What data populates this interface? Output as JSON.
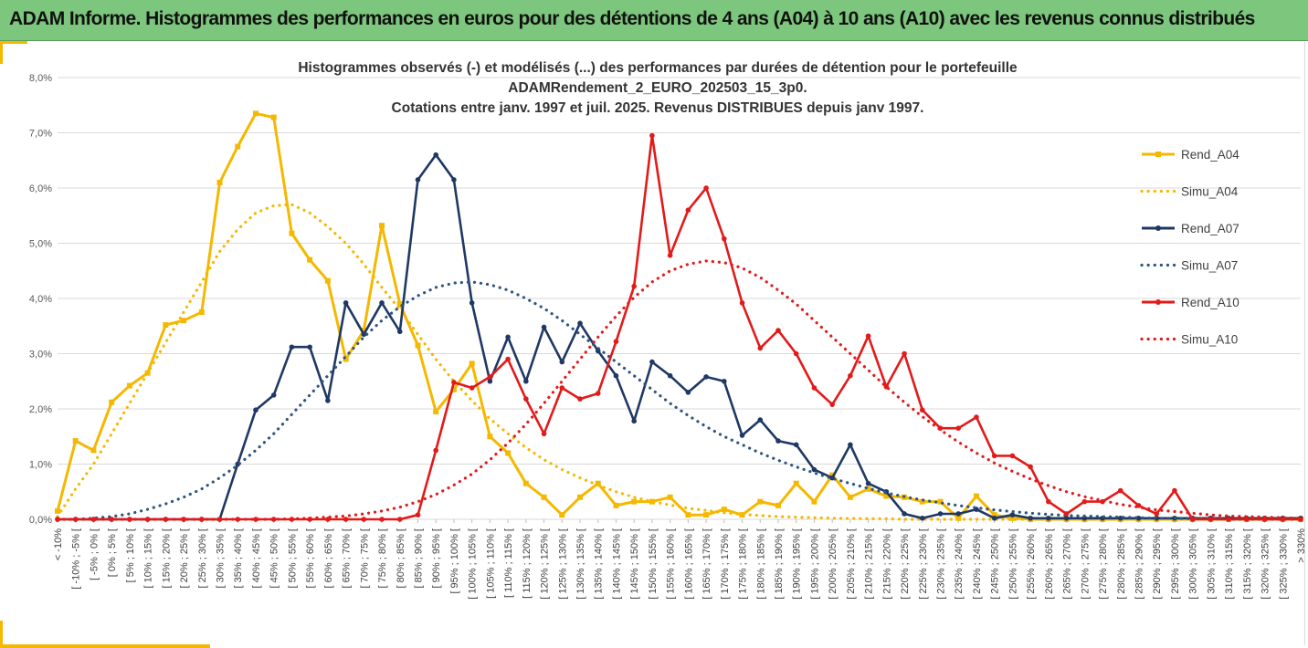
{
  "banner": {
    "title": "ADAM Informe. Histogrammes des performances en euros pour des détentions de 4 ans (A04) à 10 ans (A10) avec les revenus connus distribués"
  },
  "chart_data": {
    "type": "line",
    "title_lines": [
      "Histogrammes observés (-) et modélisés (...) des performances par durées de détention pour le portefeuille",
      "ADAMRendement_2_EURO_202503_15_3p0.",
      "Cotations entre janv. 1997 et juil. 2025. Revenus DISTRIBUES depuis janv 1997."
    ],
    "xlabel": "",
    "ylabel": "",
    "ylim": [
      0,
      8
    ],
    "y_ticks": [
      "0,0%",
      "1,0%",
      "2,0%",
      "3,0%",
      "4,0%",
      "5,0%",
      "6,0%",
      "7,0%",
      "8,0%"
    ],
    "grid": true,
    "legend_position": "right",
    "categories": [
      "< -10%",
      "[ -10% ; -5% [",
      "[ -5% ; 0% [",
      "[ 0% ; 5% [",
      "[ 5% ; 10% [",
      "[ 10% ; 15% [",
      "[ 15% ; 20% [",
      "[ 20% ; 25% [",
      "[ 25% ; 30% [",
      "[ 30% ; 35% [",
      "[ 35% ; 40% [",
      "[ 40% ; 45% [",
      "[ 45% ; 50% [",
      "[ 50% ; 55% [",
      "[ 55% ; 60% [",
      "[ 60% ; 65% [",
      "[ 65% ; 70% [",
      "[ 70% ; 75% [",
      "[ 75% ; 80% [",
      "[ 80% ; 85% [",
      "[ 85% ; 90% [",
      "[ 90% ; 95% [",
      "[ 95% ; 100% [",
      "[ 100% ; 105% [",
      "[ 105% ; 110% [",
      "[ 110% ; 115% [",
      "[ 115% ; 120% [",
      "[ 120% ; 125% [",
      "[ 125% ; 130% [",
      "[ 130% ; 135% [",
      "[ 135% ; 140% [",
      "[ 140% ; 145% [",
      "[ 145% ; 150% [",
      "[ 150% ; 155% [",
      "[ 155% ; 160% [",
      "[ 160% ; 165% [",
      "[ 165% ; 170% [",
      "[ 170% ; 175% [",
      "[ 175% ; 180% [",
      "[ 180% ; 185% [",
      "[ 185% ; 190% [",
      "[ 190% ; 195% [",
      "[ 195% ; 200% [",
      "[ 200% ; 205% [",
      "[ 205% ; 210% [",
      "[ 210% ; 215% [",
      "[ 215% ; 220% [",
      "[ 220% ; 225% [",
      "[ 225% ; 230% [",
      "[ 230% ; 235% [",
      "[ 235% ; 240% [",
      "[ 240% ; 245% [",
      "[ 245% ; 250% [",
      "[ 250% ; 255% [",
      "[ 255% ; 260% [",
      "[ 260% ; 265% [",
      "[ 265% ; 270% [",
      "[ 270% ; 275% [",
      "[ 275% ; 280% [",
      "[ 280% ; 285% [",
      "[ 285% ; 290% [",
      "[ 290% ; 295% [",
      "[ 295% ; 300% [",
      "[ 300% ; 305% [",
      "[ 305% ; 310% [",
      "[ 310% ; 315% [",
      "[ 315% ; 320% [",
      "[ 320% ; 325% [",
      "[ 325% ; 330% [",
      "> 330%"
    ],
    "series": [
      {
        "name": "Rend_A04",
        "style": "solid",
        "marker": "square",
        "color": "#f5b800",
        "values": [
          0.15,
          1.42,
          1.25,
          2.12,
          2.42,
          2.65,
          3.52,
          3.6,
          3.75,
          6.1,
          6.75,
          7.35,
          7.28,
          5.18,
          4.7,
          4.32,
          2.9,
          3.42,
          5.32,
          3.9,
          3.15,
          1.95,
          2.35,
          2.82,
          1.5,
          1.2,
          0.65,
          0.4,
          0.08,
          0.4,
          0.65,
          0.25,
          0.32,
          0.32,
          0.4,
          0.08,
          0.08,
          0.18,
          0.08,
          0.32,
          0.25,
          0.65,
          0.32,
          0.8,
          0.4,
          0.55,
          0.42,
          0.4,
          0.32,
          0.32,
          0.02,
          0.42,
          0.08,
          0.02,
          0.0,
          0.0,
          0.0,
          0.0,
          0.0,
          0.0,
          0.0,
          0.0,
          0.0,
          0.0,
          0.0,
          0.0,
          0.0,
          0.0,
          0.0,
          0.0
        ]
      },
      {
        "name": "Simu_A04",
        "style": "dotted",
        "marker": "none",
        "color": "#f5b800",
        "values": [
          0.05,
          0.55,
          1.0,
          1.55,
          2.1,
          2.65,
          3.2,
          3.75,
          4.3,
          4.85,
          5.25,
          5.55,
          5.68,
          5.7,
          5.55,
          5.3,
          5.0,
          4.62,
          4.2,
          3.8,
          3.35,
          2.9,
          2.5,
          2.15,
          1.82,
          1.55,
          1.3,
          1.08,
          0.9,
          0.75,
          0.62,
          0.5,
          0.4,
          0.32,
          0.26,
          0.2,
          0.16,
          0.12,
          0.09,
          0.07,
          0.05,
          0.04,
          0.03,
          0.02,
          0.015,
          0.01,
          0.01,
          0.0,
          0.0,
          0.0,
          0.0,
          0.0,
          0.0,
          0.0,
          0.0,
          0.0,
          0.0,
          0.0,
          0.0,
          0.0,
          0.0,
          0.0,
          0.0,
          0.0,
          0.0,
          0.0,
          0.0,
          0.0,
          0.0,
          0.0
        ]
      },
      {
        "name": "Rend_A07",
        "style": "solid",
        "marker": "circle",
        "color": "#1f3864",
        "values": [
          0.0,
          0.0,
          0.0,
          0.0,
          0.0,
          0.0,
          0.0,
          0.0,
          0.0,
          0.0,
          1.0,
          1.98,
          2.25,
          3.12,
          3.12,
          2.15,
          3.92,
          3.35,
          3.92,
          3.4,
          6.15,
          6.6,
          6.15,
          3.92,
          2.5,
          3.3,
          2.5,
          3.48,
          2.85,
          3.55,
          3.05,
          2.6,
          1.78,
          2.85,
          2.6,
          2.3,
          2.58,
          2.5,
          1.52,
          1.8,
          1.42,
          1.35,
          0.9,
          0.75,
          1.35,
          0.65,
          0.5,
          0.1,
          0.02,
          0.1,
          0.1,
          0.18,
          0.02,
          0.08,
          0.02,
          0.02,
          0.02,
          0.02,
          0.02,
          0.02,
          0.02,
          0.02,
          0.02,
          0.02,
          0.02,
          0.02,
          0.02,
          0.02,
          0.02,
          0.02
        ]
      },
      {
        "name": "Simu_A07",
        "style": "dotted",
        "marker": "none",
        "color": "#2f5580",
        "values": [
          0.0,
          0.0,
          0.02,
          0.05,
          0.1,
          0.18,
          0.28,
          0.4,
          0.55,
          0.75,
          0.98,
          1.25,
          1.55,
          1.9,
          2.25,
          2.6,
          2.95,
          3.3,
          3.6,
          3.85,
          4.05,
          4.2,
          4.28,
          4.3,
          4.25,
          4.15,
          4.0,
          3.82,
          3.6,
          3.35,
          3.1,
          2.85,
          2.6,
          2.35,
          2.1,
          1.88,
          1.68,
          1.5,
          1.35,
          1.2,
          1.07,
          0.95,
          0.84,
          0.74,
          0.65,
          0.56,
          0.48,
          0.41,
          0.35,
          0.3,
          0.25,
          0.21,
          0.17,
          0.14,
          0.11,
          0.09,
          0.07,
          0.06,
          0.05,
          0.04,
          0.03,
          0.02,
          0.02,
          0.01,
          0.01,
          0.0,
          0.0,
          0.0,
          0.0,
          0.0
        ]
      },
      {
        "name": "Rend_A10",
        "style": "solid",
        "marker": "circle",
        "color": "#e21a1a",
        "values": [
          0.0,
          0.0,
          0.0,
          0.0,
          0.0,
          0.0,
          0.0,
          0.0,
          0.0,
          0.0,
          0.0,
          0.0,
          0.0,
          0.0,
          0.0,
          0.0,
          0.0,
          0.0,
          0.0,
          0.0,
          0.08,
          1.25,
          2.48,
          2.38,
          2.58,
          2.9,
          2.18,
          1.55,
          2.38,
          2.18,
          2.28,
          3.22,
          4.22,
          6.95,
          4.78,
          5.6,
          6.0,
          5.08,
          3.92,
          3.1,
          3.42,
          3.0,
          2.38,
          2.08,
          2.6,
          3.32,
          2.4,
          3.0,
          1.98,
          1.65,
          1.65,
          1.85,
          1.15,
          1.15,
          0.95,
          0.32,
          0.1,
          0.32,
          0.32,
          0.52,
          0.25,
          0.1,
          0.52,
          0.0,
          0.0,
          0.0,
          0.0,
          0.0,
          0.0,
          0.0
        ]
      },
      {
        "name": "Simu_A10",
        "style": "dotted",
        "marker": "none",
        "color": "#e21a1a",
        "values": [
          0.0,
          0.0,
          0.0,
          0.0,
          0.0,
          0.0,
          0.0,
          0.0,
          0.0,
          0.0,
          0.0,
          0.0,
          0.0,
          0.01,
          0.02,
          0.04,
          0.06,
          0.1,
          0.15,
          0.22,
          0.32,
          0.45,
          0.62,
          0.82,
          1.08,
          1.38,
          1.72,
          2.1,
          2.5,
          2.9,
          3.3,
          3.68,
          4.02,
          4.3,
          4.5,
          4.62,
          4.68,
          4.65,
          4.55,
          4.38,
          4.15,
          3.9,
          3.6,
          3.3,
          3.0,
          2.7,
          2.4,
          2.12,
          1.86,
          1.62,
          1.4,
          1.2,
          1.02,
          0.87,
          0.73,
          0.61,
          0.5,
          0.41,
          0.34,
          0.27,
          0.22,
          0.17,
          0.14,
          0.11,
          0.08,
          0.06,
          0.05,
          0.04,
          0.03,
          0.02
        ]
      }
    ]
  }
}
